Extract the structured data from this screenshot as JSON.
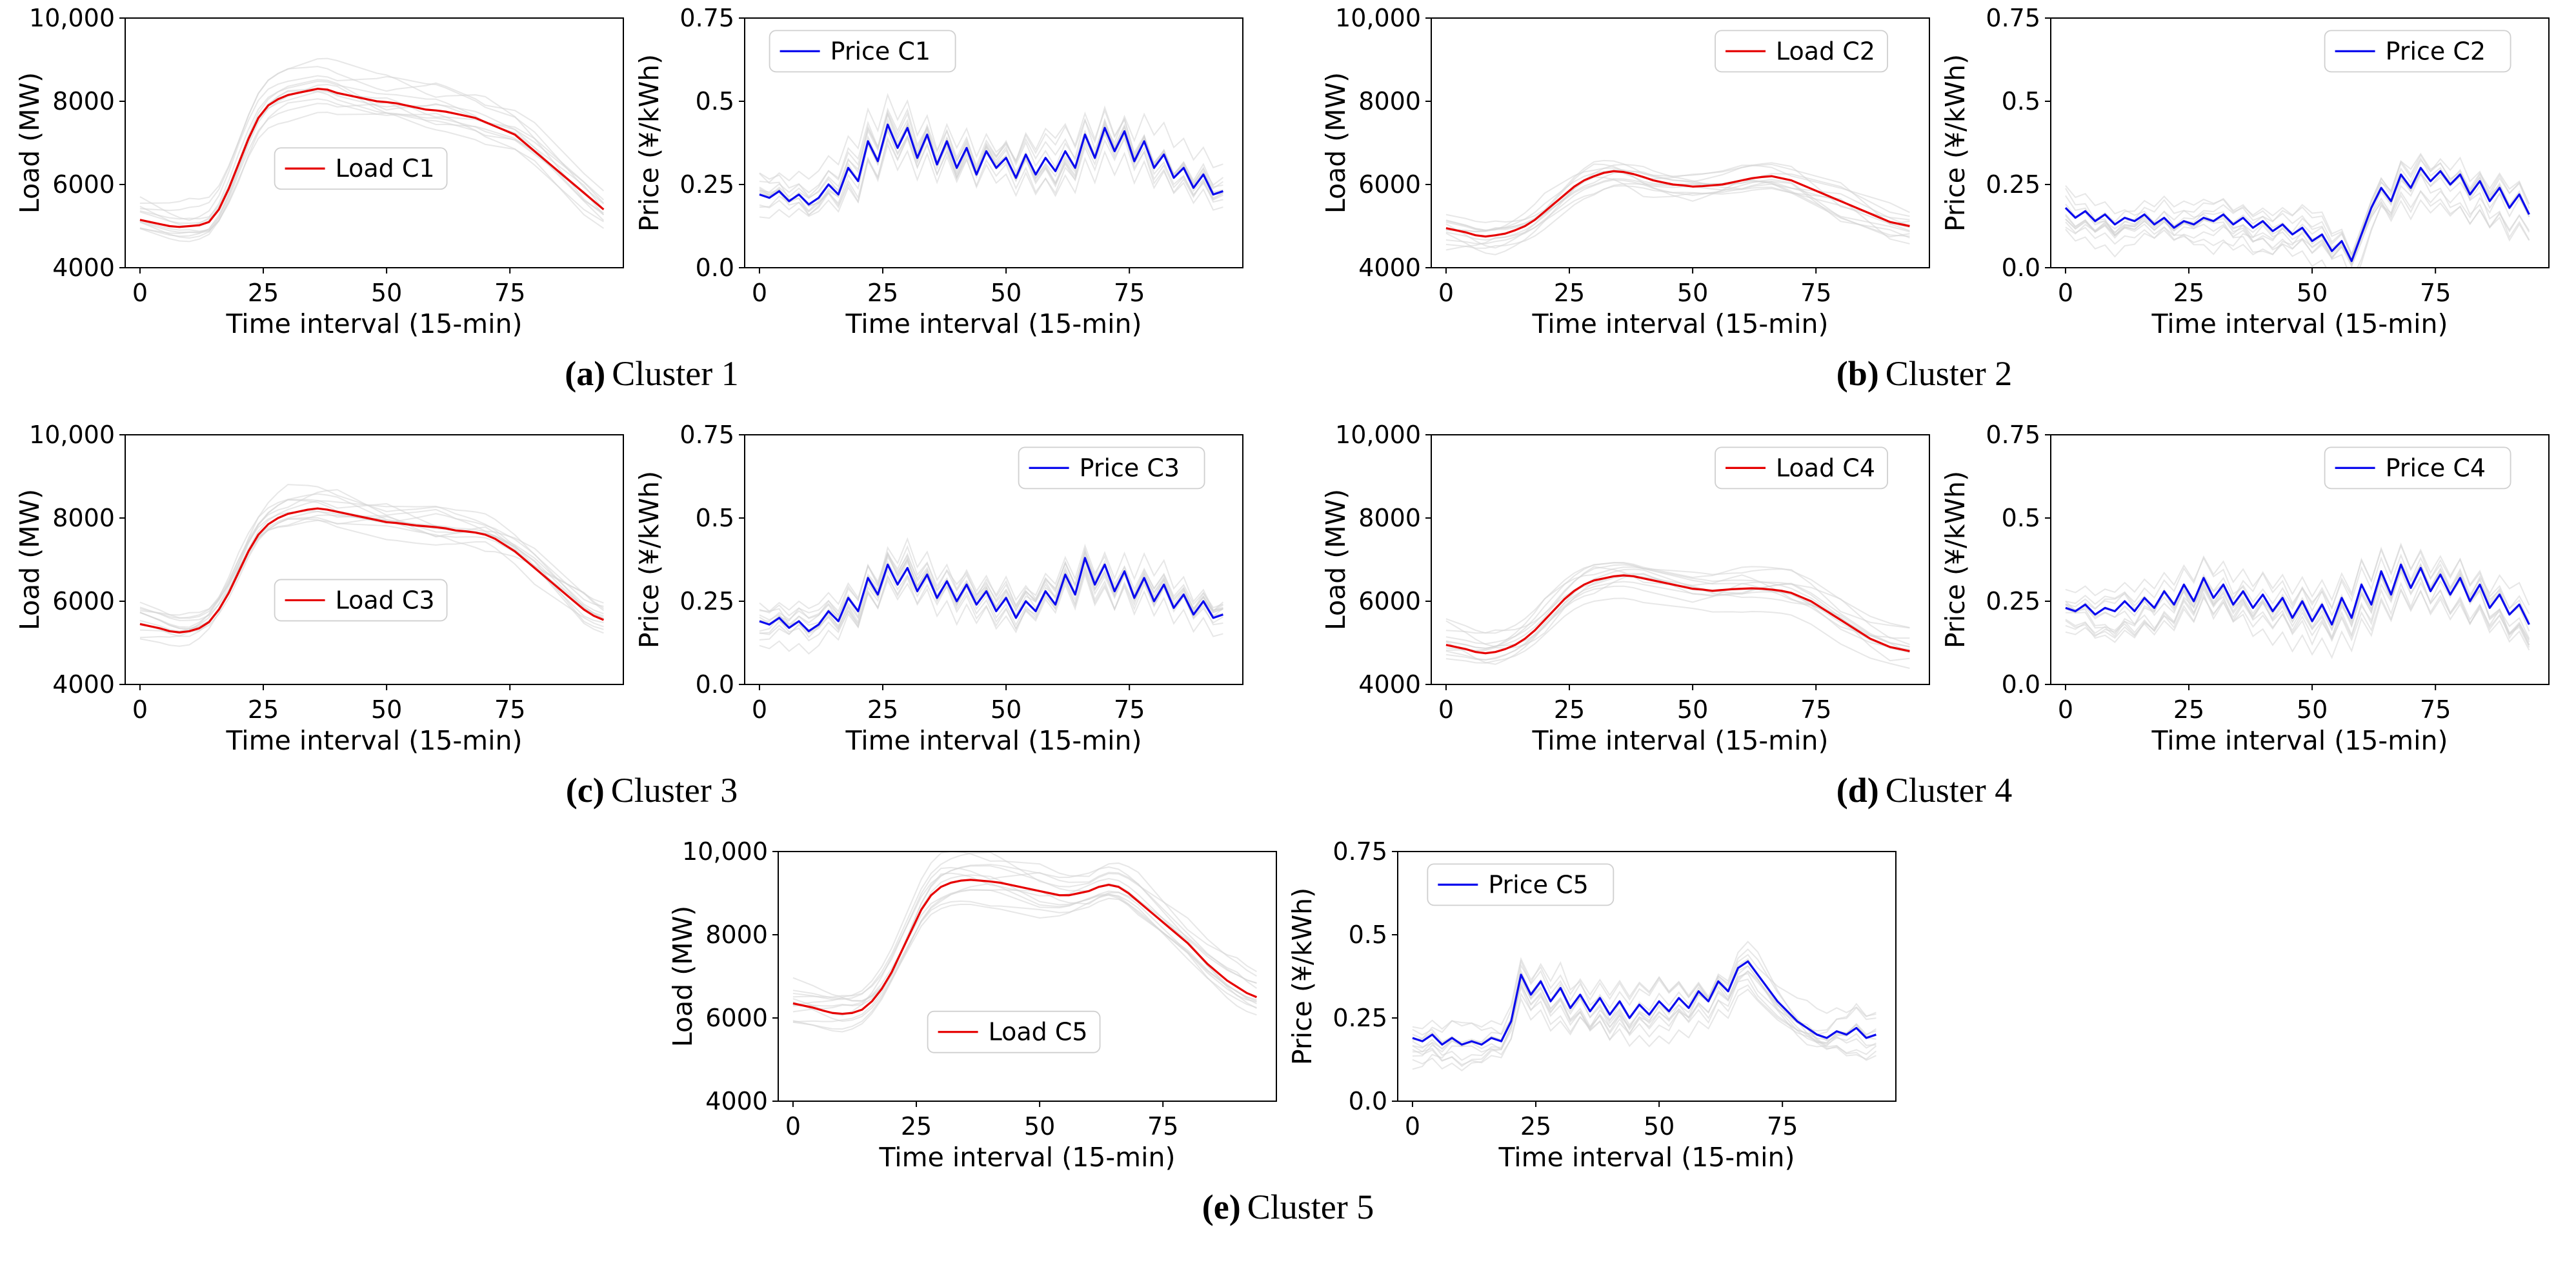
{
  "captions": [
    {
      "label": "(a)",
      "text": "Cluster 1"
    },
    {
      "label": "(b)",
      "text": "Cluster 2"
    },
    {
      "label": "(c)",
      "text": "Cluster 3"
    },
    {
      "label": "(d)",
      "text": "Cluster 4"
    },
    {
      "label": "(e)",
      "text": "Cluster 5"
    }
  ],
  "colors": {
    "load": "#e60000",
    "price": "#0b0bee",
    "background_lines": "#d3d3d3"
  },
  "chart_data": [
    {
      "cluster": 1,
      "load": {
        "type": "line",
        "legend": "Load C1",
        "color": "#e60000",
        "xlabel": "Time interval (15-min)",
        "ylabel": "Load (MW)",
        "ylim": [
          4000,
          10000
        ],
        "yticks": [
          4000,
          6000,
          8000,
          10000
        ],
        "ytick_labels": [
          "4000",
          "6000",
          "8000",
          "10,000"
        ],
        "xlim": [
          -3,
          98
        ],
        "xticks": [
          0,
          25,
          50,
          75
        ],
        "x_start": 0,
        "x_step": 2,
        "legend_pos": [
          0.3,
          0.52
        ],
        "values": [
          5150,
          5100,
          5050,
          5000,
          4980,
          5000,
          5020,
          5100,
          5400,
          5900,
          6500,
          7100,
          7600,
          7900,
          8050,
          8150,
          8200,
          8250,
          8300,
          8280,
          8200,
          8150,
          8100,
          8050,
          8000,
          7980,
          7950,
          7900,
          7850,
          7800,
          7780,
          7750,
          7700,
          7650,
          7600,
          7500,
          7400,
          7300,
          7200,
          7000,
          6800,
          6600,
          6400,
          6200,
          6000,
          5800,
          5600,
          5400
        ]
      },
      "price": {
        "type": "line",
        "legend": "Price C1",
        "color": "#0b0bee",
        "xlabel": "Time interval (15-min)",
        "ylabel": "Price (¥/kWh)",
        "ylim": [
          0,
          0.75
        ],
        "yticks": [
          0,
          0.25,
          0.5,
          0.75
        ],
        "ytick_labels": [
          "0.0",
          "0.25",
          "0.5",
          "0.75"
        ],
        "xlim": [
          -3,
          98
        ],
        "xticks": [
          0,
          25,
          50,
          75
        ],
        "x_start": 0,
        "x_step": 2,
        "legend_pos": [
          0.05,
          0.05
        ],
        "values": [
          0.22,
          0.21,
          0.23,
          0.2,
          0.22,
          0.19,
          0.21,
          0.25,
          0.22,
          0.3,
          0.26,
          0.38,
          0.32,
          0.43,
          0.36,
          0.42,
          0.33,
          0.4,
          0.31,
          0.38,
          0.3,
          0.36,
          0.28,
          0.35,
          0.3,
          0.33,
          0.27,
          0.34,
          0.28,
          0.33,
          0.29,
          0.35,
          0.3,
          0.4,
          0.33,
          0.42,
          0.35,
          0.41,
          0.32,
          0.38,
          0.3,
          0.34,
          0.27,
          0.3,
          0.24,
          0.28,
          0.22,
          0.23
        ]
      }
    },
    {
      "cluster": 2,
      "load": {
        "type": "line",
        "legend": "Load C2",
        "color": "#e60000",
        "xlabel": "Time interval (15-min)",
        "ylabel": "Load (MW)",
        "ylim": [
          4000,
          10000
        ],
        "yticks": [
          4000,
          6000,
          8000,
          10000
        ],
        "ytick_labels": [
          "4000",
          "6000",
          "8000",
          "10,000"
        ],
        "xlim": [
          -3,
          98
        ],
        "xticks": [
          0,
          25,
          50,
          75
        ],
        "x_start": 0,
        "x_step": 2,
        "legend_pos": [
          0.57,
          0.05
        ],
        "values": [
          4950,
          4900,
          4850,
          4780,
          4750,
          4780,
          4820,
          4900,
          5000,
          5150,
          5350,
          5550,
          5750,
          5950,
          6100,
          6200,
          6280,
          6320,
          6300,
          6250,
          6180,
          6100,
          6050,
          6000,
          5980,
          5950,
          5960,
          5980,
          6000,
          6050,
          6100,
          6150,
          6180,
          6200,
          6150,
          6100,
          6000,
          5900,
          5800,
          5700,
          5600,
          5500,
          5400,
          5300,
          5200,
          5100,
          5050,
          5000
        ]
      },
      "price": {
        "type": "line",
        "legend": "Price C2",
        "color": "#0b0bee",
        "xlabel": "Time interval (15-min)",
        "ylabel": "Price (¥/kWh)",
        "ylim": [
          0,
          0.75
        ],
        "yticks": [
          0,
          0.25,
          0.5,
          0.75
        ],
        "ytick_labels": [
          "0.0",
          "0.25",
          "0.5",
          "0.75"
        ],
        "xlim": [
          -3,
          98
        ],
        "xticks": [
          0,
          25,
          50,
          75
        ],
        "x_start": 0,
        "x_step": 2,
        "legend_pos": [
          0.55,
          0.05
        ],
        "values": [
          0.18,
          0.15,
          0.17,
          0.14,
          0.16,
          0.13,
          0.15,
          0.14,
          0.16,
          0.13,
          0.15,
          0.12,
          0.14,
          0.13,
          0.15,
          0.14,
          0.16,
          0.13,
          0.15,
          0.12,
          0.14,
          0.11,
          0.13,
          0.1,
          0.12,
          0.08,
          0.1,
          0.05,
          0.08,
          0.02,
          0.1,
          0.18,
          0.24,
          0.2,
          0.28,
          0.24,
          0.3,
          0.26,
          0.29,
          0.25,
          0.28,
          0.22,
          0.26,
          0.2,
          0.24,
          0.18,
          0.22,
          0.16
        ]
      }
    },
    {
      "cluster": 3,
      "load": {
        "type": "line",
        "legend": "Load C3",
        "color": "#e60000",
        "xlabel": "Time interval (15-min)",
        "ylabel": "Load (MW)",
        "ylim": [
          4000,
          10000
        ],
        "yticks": [
          4000,
          6000,
          8000,
          10000
        ],
        "ytick_labels": [
          "4000",
          "6000",
          "8000",
          "10,000"
        ],
        "xlim": [
          -3,
          98
        ],
        "xticks": [
          0,
          25,
          50,
          75
        ],
        "x_start": 0,
        "x_step": 2,
        "legend_pos": [
          0.3,
          0.58
        ],
        "values": [
          5450,
          5400,
          5350,
          5280,
          5250,
          5280,
          5350,
          5500,
          5800,
          6200,
          6700,
          7200,
          7600,
          7850,
          8000,
          8100,
          8150,
          8200,
          8230,
          8200,
          8150,
          8100,
          8050,
          8000,
          7950,
          7900,
          7880,
          7850,
          7820,
          7800,
          7780,
          7750,
          7700,
          7680,
          7650,
          7600,
          7500,
          7350,
          7200,
          7000,
          6800,
          6600,
          6400,
          6200,
          6000,
          5800,
          5650,
          5550
        ]
      },
      "price": {
        "type": "line",
        "legend": "Price C3",
        "color": "#0b0bee",
        "xlabel": "Time interval (15-min)",
        "ylabel": "Price (¥/kWh)",
        "ylim": [
          0,
          0.75
        ],
        "yticks": [
          0,
          0.25,
          0.5,
          0.75
        ],
        "ytick_labels": [
          "0.0",
          "0.25",
          "0.5",
          "0.75"
        ],
        "xlim": [
          -3,
          98
        ],
        "xticks": [
          0,
          25,
          50,
          75
        ],
        "x_start": 0,
        "x_step": 2,
        "legend_pos": [
          0.55,
          0.05
        ],
        "values": [
          0.19,
          0.18,
          0.2,
          0.17,
          0.19,
          0.16,
          0.18,
          0.22,
          0.19,
          0.26,
          0.22,
          0.32,
          0.27,
          0.36,
          0.3,
          0.35,
          0.28,
          0.33,
          0.26,
          0.31,
          0.25,
          0.3,
          0.24,
          0.28,
          0.22,
          0.26,
          0.2,
          0.25,
          0.22,
          0.28,
          0.24,
          0.33,
          0.27,
          0.38,
          0.3,
          0.36,
          0.28,
          0.34,
          0.26,
          0.32,
          0.25,
          0.3,
          0.23,
          0.27,
          0.21,
          0.25,
          0.2,
          0.21
        ]
      }
    },
    {
      "cluster": 4,
      "load": {
        "type": "line",
        "legend": "Load C4",
        "color": "#e60000",
        "xlabel": "Time interval (15-min)",
        "ylabel": "Load (MW)",
        "ylim": [
          4000,
          10000
        ],
        "yticks": [
          4000,
          6000,
          8000,
          10000
        ],
        "ytick_labels": [
          "4000",
          "6000",
          "8000",
          "10,000"
        ],
        "xlim": [
          -3,
          98
        ],
        "xticks": [
          0,
          25,
          50,
          75
        ],
        "x_start": 0,
        "x_step": 2,
        "legend_pos": [
          0.57,
          0.05
        ],
        "values": [
          4950,
          4900,
          4850,
          4780,
          4750,
          4780,
          4850,
          4950,
          5100,
          5300,
          5550,
          5800,
          6050,
          6250,
          6400,
          6500,
          6550,
          6600,
          6620,
          6600,
          6550,
          6500,
          6450,
          6400,
          6350,
          6300,
          6280,
          6250,
          6270,
          6290,
          6300,
          6310,
          6300,
          6280,
          6250,
          6200,
          6100,
          6000,
          5850,
          5700,
          5550,
          5400,
          5250,
          5100,
          5000,
          4900,
          4850,
          4800
        ]
      },
      "price": {
        "type": "line",
        "legend": "Price C4",
        "color": "#0b0bee",
        "xlabel": "Time interval (15-min)",
        "ylabel": "Price (¥/kWh)",
        "ylim": [
          0,
          0.75
        ],
        "yticks": [
          0,
          0.25,
          0.5,
          0.75
        ],
        "ytick_labels": [
          "0.0",
          "0.25",
          "0.5",
          "0.75"
        ],
        "xlim": [
          -3,
          98
        ],
        "xticks": [
          0,
          25,
          50,
          75
        ],
        "x_start": 0,
        "x_step": 2,
        "legend_pos": [
          0.55,
          0.05
        ],
        "values": [
          0.23,
          0.22,
          0.24,
          0.21,
          0.23,
          0.22,
          0.25,
          0.22,
          0.26,
          0.23,
          0.28,
          0.24,
          0.3,
          0.25,
          0.32,
          0.26,
          0.3,
          0.24,
          0.28,
          0.23,
          0.27,
          0.22,
          0.26,
          0.2,
          0.25,
          0.19,
          0.24,
          0.18,
          0.26,
          0.2,
          0.3,
          0.24,
          0.34,
          0.27,
          0.36,
          0.29,
          0.35,
          0.28,
          0.33,
          0.27,
          0.32,
          0.25,
          0.3,
          0.23,
          0.27,
          0.21,
          0.24,
          0.18
        ]
      }
    },
    {
      "cluster": 5,
      "load": {
        "type": "line",
        "legend": "Load C5",
        "color": "#e60000",
        "xlabel": "Time interval (15-min)",
        "ylabel": "Load (MW)",
        "ylim": [
          4000,
          10000
        ],
        "yticks": [
          4000,
          6000,
          8000,
          10000
        ],
        "ytick_labels": [
          "4000",
          "6000",
          "8000",
          "10,000"
        ],
        "xlim": [
          -3,
          98
        ],
        "xticks": [
          0,
          25,
          50,
          75
        ],
        "x_start": 0,
        "x_step": 2,
        "legend_pos": [
          0.3,
          0.64
        ],
        "values": [
          6350,
          6300,
          6250,
          6180,
          6120,
          6100,
          6120,
          6200,
          6400,
          6700,
          7100,
          7600,
          8100,
          8600,
          8950,
          9150,
          9250,
          9300,
          9320,
          9300,
          9280,
          9250,
          9200,
          9150,
          9100,
          9050,
          9000,
          8950,
          8950,
          9000,
          9050,
          9150,
          9200,
          9150,
          9000,
          8800,
          8600,
          8400,
          8200,
          8000,
          7800,
          7550,
          7300,
          7100,
          6900,
          6750,
          6600,
          6500
        ]
      },
      "price": {
        "type": "line",
        "legend": "Price C5",
        "color": "#0b0bee",
        "xlabel": "Time interval (15-min)",
        "ylabel": "Price (¥/kWh)",
        "ylim": [
          0,
          0.75
        ],
        "yticks": [
          0,
          0.25,
          0.5,
          0.75
        ],
        "ytick_labels": [
          "0.0",
          "0.25",
          "0.5",
          "0.75"
        ],
        "xlim": [
          -3,
          98
        ],
        "xticks": [
          0,
          25,
          50,
          75
        ],
        "x_start": 0,
        "x_step": 2,
        "legend_pos": [
          0.06,
          0.05
        ],
        "values": [
          0.19,
          0.18,
          0.2,
          0.17,
          0.19,
          0.17,
          0.18,
          0.17,
          0.19,
          0.18,
          0.24,
          0.38,
          0.32,
          0.36,
          0.3,
          0.34,
          0.28,
          0.32,
          0.27,
          0.31,
          0.26,
          0.3,
          0.25,
          0.29,
          0.26,
          0.3,
          0.27,
          0.31,
          0.28,
          0.33,
          0.3,
          0.36,
          0.33,
          0.4,
          0.42,
          0.38,
          0.34,
          0.3,
          0.27,
          0.24,
          0.22,
          0.2,
          0.19,
          0.21,
          0.2,
          0.22,
          0.19,
          0.2
        ]
      }
    }
  ]
}
